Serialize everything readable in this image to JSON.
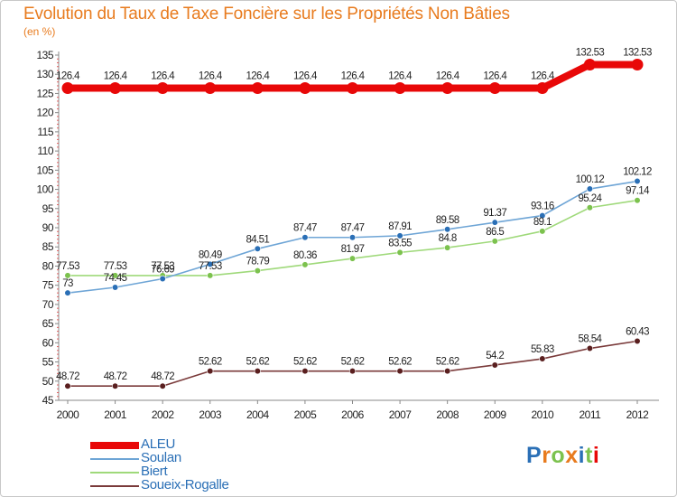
{
  "chart_data": {
    "type": "line",
    "title": "Evolution du Taux de Taxe Foncière sur les Propriétés Non Bâties",
    "unit_label": "(en %)",
    "xlabel": "",
    "ylabel": "",
    "x": [
      "2000",
      "2001",
      "2002",
      "2003",
      "2004",
      "2005",
      "2006",
      "2007",
      "2008",
      "2009",
      "2010",
      "2011",
      "2012"
    ],
    "ylim": [
      45,
      135
    ],
    "yticks": [
      45,
      50,
      55,
      60,
      65,
      70,
      75,
      80,
      85,
      90,
      95,
      100,
      105,
      110,
      115,
      120,
      125,
      130,
      135
    ],
    "grid": false,
    "legend_position": "bottom-left",
    "series": [
      {
        "name": "ALEU",
        "color": "#e80808",
        "values": [
          126.4,
          126.4,
          126.4,
          126.4,
          126.4,
          126.4,
          126.4,
          126.4,
          126.4,
          126.4,
          126.4,
          132.53,
          132.53
        ],
        "labels": [
          "126.4",
          "126.4",
          "126.4",
          "126.4",
          "126.4",
          "126.4",
          "126.4",
          "126.4",
          "126.4",
          "126.4",
          "126.4",
          "132.53",
          "132.53"
        ]
      },
      {
        "name": "Soulan",
        "color": "#6ea5d6",
        "marker": "#2a6fb6",
        "values": [
          73,
          74.45,
          76.69,
          80.49,
          84.51,
          87.47,
          87.47,
          87.91,
          89.58,
          91.37,
          93.16,
          100.12,
          102.12
        ],
        "labels": [
          "73",
          "74.45",
          "76.69",
          "80.49",
          "84.51",
          "87.47",
          "87.47",
          "87.91",
          "89.58",
          "91.37",
          "93.16",
          "100.12",
          "102.12"
        ]
      },
      {
        "name": "Biert",
        "color": "#9fd97a",
        "marker": "#7cc24e",
        "values": [
          77.53,
          77.53,
          77.53,
          77.53,
          78.79,
          80.36,
          81.97,
          83.55,
          84.8,
          86.5,
          89.1,
          95.24,
          97.14
        ],
        "labels": [
          "77.53",
          "77.53",
          "77.53",
          "77.53",
          "78.79",
          "80.36",
          "81.97",
          "83.55",
          "84.8",
          "86.5",
          "89.1",
          "95.24",
          "97.14"
        ]
      },
      {
        "name": "Soueix-Rogalle",
        "color": "#7a3a3a",
        "marker": "#5a1f1f",
        "values": [
          48.72,
          48.72,
          48.72,
          52.62,
          52.62,
          52.62,
          52.62,
          52.62,
          52.62,
          54.2,
          55.83,
          58.54,
          60.43
        ],
        "labels": [
          "48.72",
          "48.72",
          "48.72",
          "52.62",
          "52.62",
          "52.62",
          "52.62",
          "52.62",
          "52.62",
          "54.2",
          "55.83",
          "58.54",
          "60.43"
        ]
      }
    ]
  },
  "logo": {
    "text": "Proxiti",
    "letter_colors": [
      "#2a6fb6",
      "#e87b1e",
      "#7cc24e",
      "#e87b1e",
      "#2a6fb6",
      "#7cc24e",
      "#e80808"
    ]
  }
}
